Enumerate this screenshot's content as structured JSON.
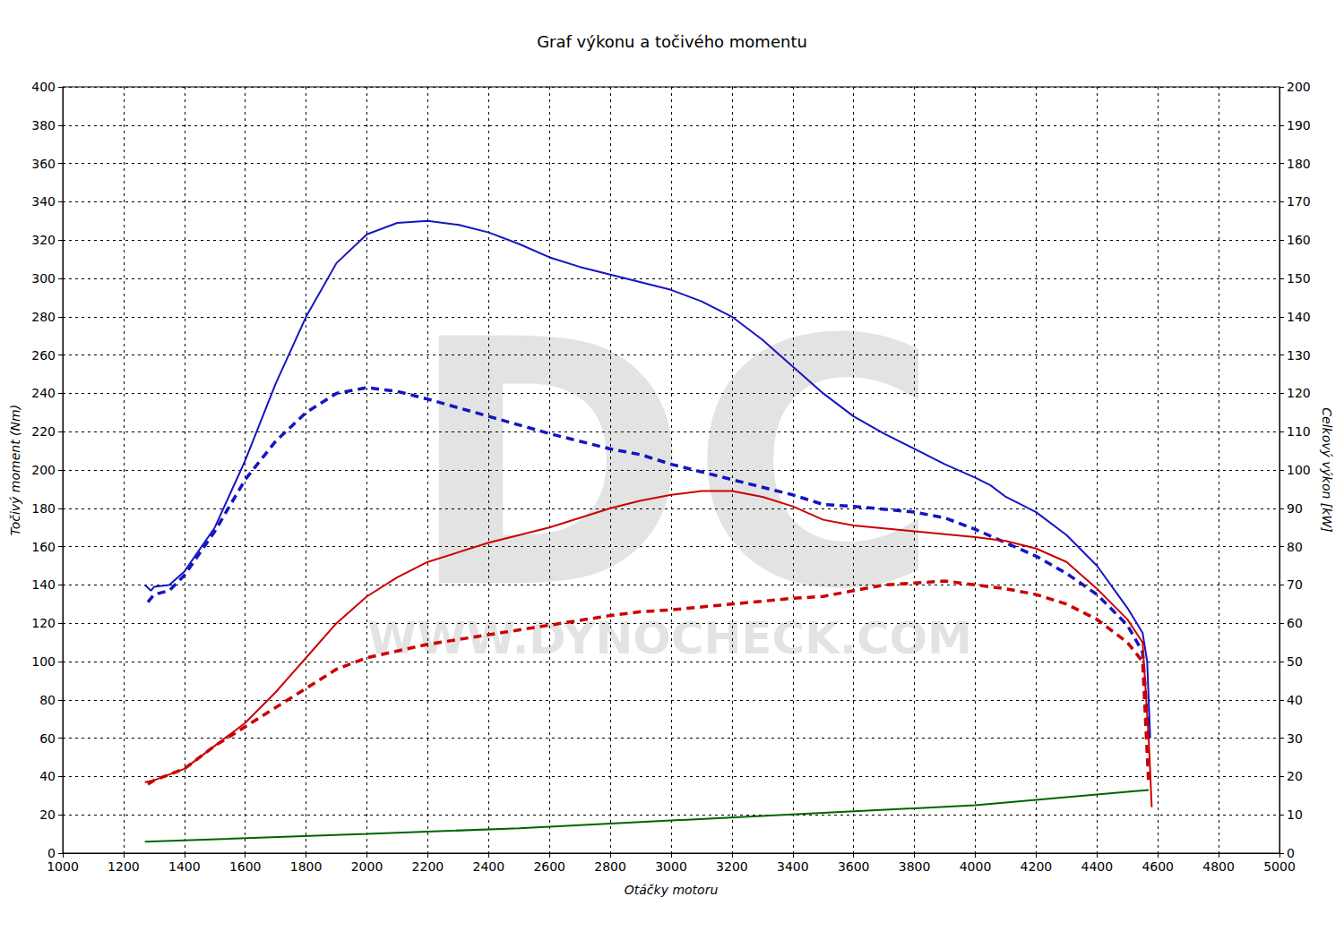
{
  "chart_data": {
    "type": "line",
    "title": "Graf výkonu a točivého momentu",
    "x_label": "Otáčky motoru",
    "y_label": "Točivý moment (Nm)",
    "y2_label": "Celkový výkon [kW]",
    "annotations": [
      "DC",
      "WWW.DYNOCHECK.COM"
    ],
    "xlim": [
      1000,
      5000
    ],
    "xticks": [
      1000,
      1200,
      1400,
      1600,
      1800,
      2000,
      2200,
      2400,
      2600,
      2800,
      3000,
      3200,
      3400,
      3600,
      3800,
      4000,
      4200,
      4400,
      4600,
      4800,
      5000
    ],
    "ylim": [
      0,
      400
    ],
    "yticks": [
      0,
      20,
      40,
      60,
      80,
      100,
      120,
      140,
      160,
      180,
      200,
      220,
      240,
      260,
      280,
      300,
      320,
      340,
      360,
      380,
      400
    ],
    "y2lim": [
      0,
      200
    ],
    "y2ticks": [
      0,
      10,
      20,
      30,
      40,
      50,
      60,
      70,
      80,
      90,
      100,
      110,
      120,
      130,
      140,
      150,
      160,
      170,
      180,
      190,
      200
    ],
    "grid": true,
    "series": [
      {
        "color": "#1515c0",
        "line_style": "solid",
        "axis": "y",
        "x": [
          1270,
          1290,
          1300,
          1350,
          1400,
          1500,
          1600,
          1700,
          1800,
          1900,
          2000,
          2100,
          2200,
          2300,
          2400,
          2500,
          2600,
          2700,
          2800,
          2900,
          3000,
          3100,
          3200,
          3300,
          3400,
          3500,
          3600,
          3700,
          3800,
          3900,
          4000,
          4050,
          4100,
          4200,
          4300,
          4400,
          4500,
          4550,
          4565,
          4575
        ],
        "values": [
          140,
          137,
          139,
          140,
          147,
          170,
          205,
          245,
          280,
          308,
          323,
          329,
          330,
          328,
          324,
          318,
          311,
          306,
          302,
          298,
          294,
          288,
          280,
          268,
          254,
          240,
          228,
          219,
          211,
          203,
          196,
          192,
          186,
          178,
          166,
          150,
          128,
          115,
          100,
          60
        ]
      },
      {
        "color": "#1515c0",
        "line_style": "dashed",
        "axis": "y",
        "x": [
          1280,
          1300,
          1350,
          1400,
          1500,
          1600,
          1700,
          1800,
          1900,
          2000,
          2100,
          2200,
          2400,
          2600,
          2800,
          2900,
          3000,
          3200,
          3400,
          3500,
          3600,
          3800,
          3900,
          4000,
          4200,
          4300,
          4400,
          4500,
          4550,
          4570
        ],
        "values": [
          131,
          135,
          137,
          145,
          168,
          195,
          215,
          230,
          240,
          243,
          241,
          237,
          228,
          219,
          211,
          208,
          203,
          195,
          187,
          182,
          181,
          178,
          175,
          169,
          155,
          146,
          135,
          119,
          105,
          60
        ]
      },
      {
        "color": "#cc0000",
        "line_style": "solid",
        "axis": "y2",
        "x": [
          1270,
          1300,
          1400,
          1500,
          1600,
          1700,
          1800,
          1900,
          2000,
          2100,
          2200,
          2400,
          2600,
          2800,
          2900,
          3000,
          3100,
          3200,
          3300,
          3400,
          3500,
          3600,
          3800,
          4000,
          4100,
          4200,
          4300,
          4400,
          4500,
          4550,
          4570,
          4580
        ],
        "values": [
          18.5,
          19,
          22,
          28,
          34,
          42,
          51,
          60,
          67,
          72,
          76,
          81,
          85,
          90,
          92,
          93.5,
          94.5,
          94.5,
          93,
          90.5,
          87,
          85.5,
          84,
          82.5,
          81.5,
          79.5,
          76,
          69,
          61,
          55,
          30,
          12
        ]
      },
      {
        "color": "#cc0000",
        "line_style": "dashed",
        "axis": "y2",
        "x": [
          1280,
          1300,
          1400,
          1500,
          1600,
          1700,
          1800,
          1900,
          2000,
          2200,
          2400,
          2600,
          2800,
          2900,
          3000,
          3200,
          3400,
          3500,
          3600,
          3700,
          3800,
          3900,
          4000,
          4100,
          4200,
          4300,
          4400,
          4500,
          4550,
          4570
        ],
        "values": [
          18,
          19,
          22,
          28,
          33,
          38,
          43,
          48,
          51,
          54.5,
          57,
          59.5,
          62,
          63,
          63.5,
          65,
          66.5,
          67,
          68.5,
          70,
          70.5,
          71,
          70,
          69,
          67.5,
          65,
          61,
          55,
          50,
          18
        ]
      },
      {
        "color": "#006400",
        "line_style": "solid",
        "axis": "y2",
        "x": [
          1270,
          2000,
          2500,
          3000,
          3500,
          4000,
          4500,
          4570
        ],
        "values": [
          3,
          5,
          6.5,
          8.5,
          10.5,
          12.5,
          16,
          16.5
        ]
      }
    ]
  }
}
